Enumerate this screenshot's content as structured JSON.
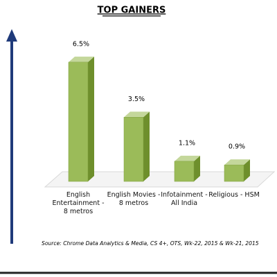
{
  "chart_data": {
    "type": "bar3d",
    "title": "TOP GAINERS",
    "categories": [
      "English Entertainment - 8 metros",
      "English Movies - 8 metros",
      "Infotainment - All India",
      "Religious - HSM"
    ],
    "values": [
      6.5,
      3.5,
      1.1,
      0.9
    ],
    "value_labels": [
      "6.5%",
      "3.5%",
      "1.1%",
      "0.9%"
    ],
    "color": "#9bbb59",
    "source": "Source: Chrome Data Analytics & Media, CS 4+,  OTS, Wk-22, 2015 & Wk-21, 2015"
  }
}
